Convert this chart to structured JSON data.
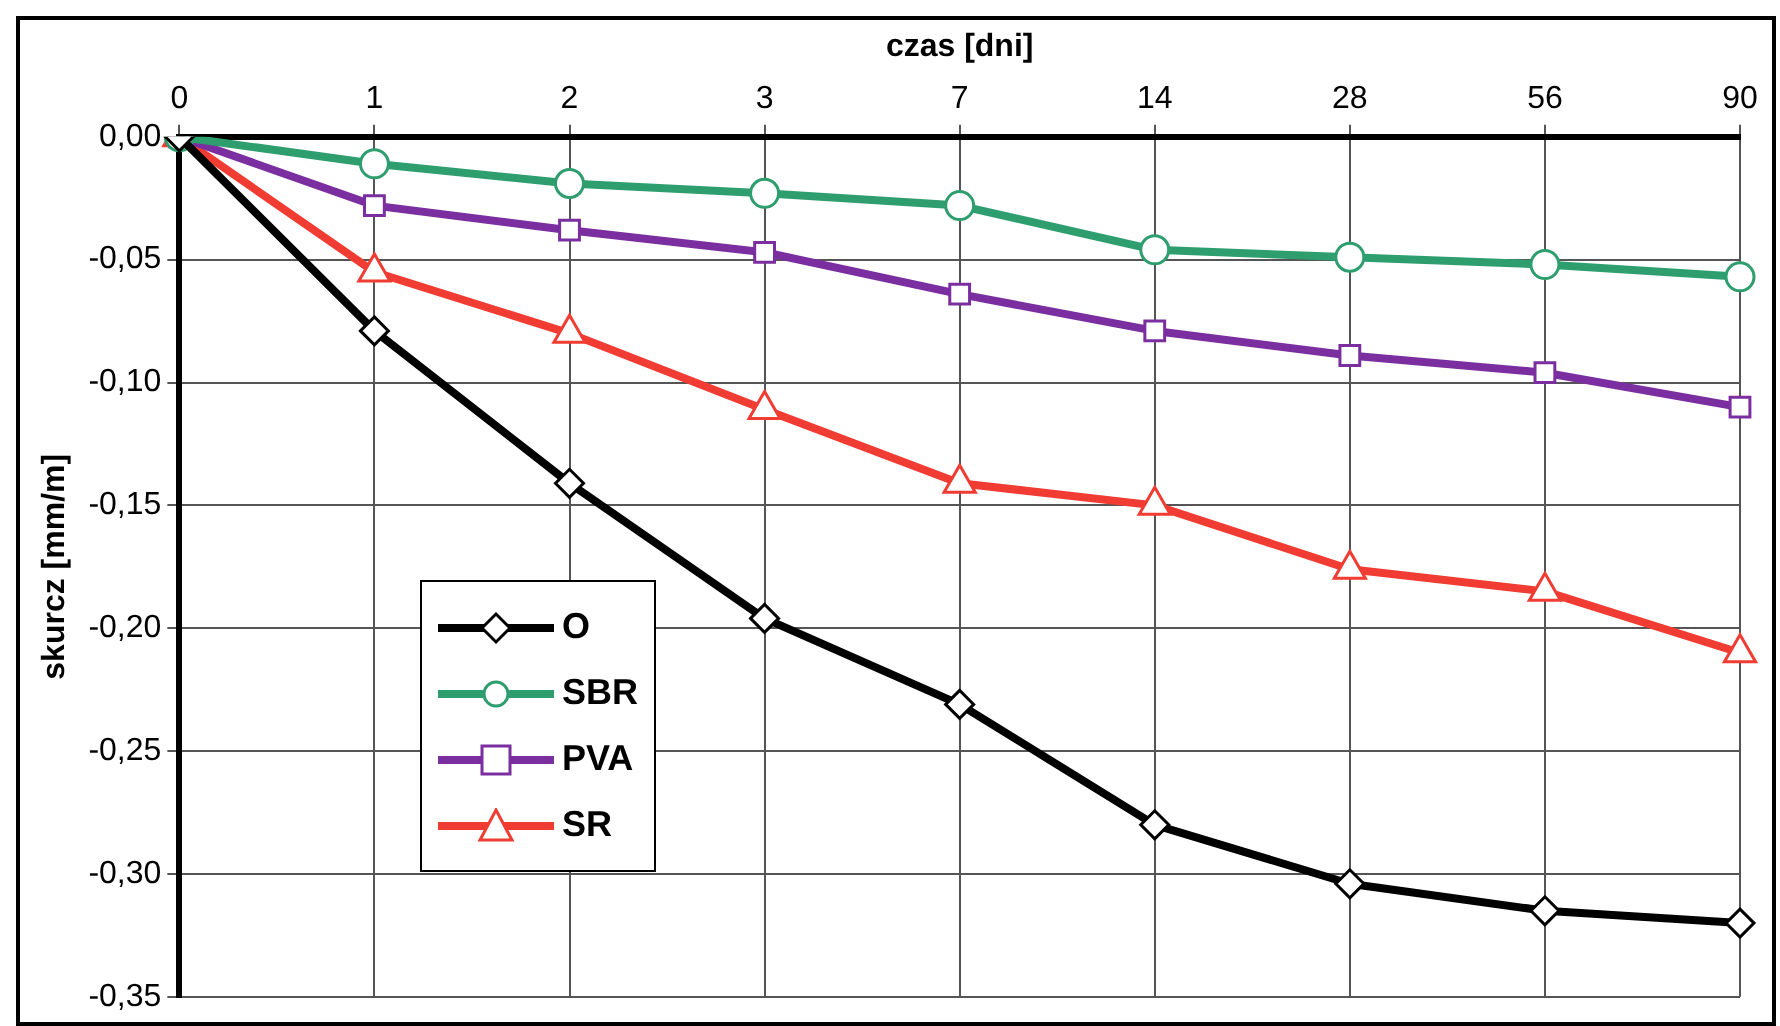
{
  "chart_data": {
    "type": "line",
    "xlabel": "czas [dni]",
    "ylabel": "skurcz [mm/m]",
    "categories": [
      "0",
      "1",
      "2",
      "3",
      "7",
      "14",
      "28",
      "56",
      "90"
    ],
    "ylim": [
      -0.35,
      0
    ],
    "yticks": [
      {
        "value": 0,
        "label": "0,00"
      },
      {
        "value": -0.05,
        "label": "-0,05"
      },
      {
        "value": -0.1,
        "label": "-0,10"
      },
      {
        "value": -0.15,
        "label": "-0,15"
      },
      {
        "value": -0.2,
        "label": "-0,20"
      },
      {
        "value": -0.25,
        "label": "-0,25"
      },
      {
        "value": -0.3,
        "label": "-0,30"
      },
      {
        "value": -0.35,
        "label": "-0,35"
      }
    ],
    "grid": true,
    "legend": "center left",
    "series": [
      {
        "name": "O",
        "color": "#000000",
        "marker": "diamond",
        "values": [
          0,
          -0.079,
          -0.141,
          -0.196,
          -0.231,
          -0.28,
          -0.304,
          -0.315,
          -0.32
        ]
      },
      {
        "name": "SBR",
        "color": "#2e9e6e",
        "marker": "circle",
        "values": [
          0,
          -0.011,
          -0.019,
          -0.023,
          -0.028,
          -0.046,
          -0.049,
          -0.052,
          -0.057
        ]
      },
      {
        "name": "PVA",
        "color": "#7a2ea0",
        "marker": "square",
        "values": [
          0,
          -0.028,
          -0.038,
          -0.047,
          -0.064,
          -0.079,
          -0.089,
          -0.096,
          -0.11
        ]
      },
      {
        "name": "SR",
        "color": "#f03c32",
        "marker": "triangle",
        "values": [
          0,
          -0.055,
          -0.08,
          -0.111,
          -0.141,
          -0.15,
          -0.176,
          -0.185,
          -0.21
        ]
      }
    ]
  }
}
